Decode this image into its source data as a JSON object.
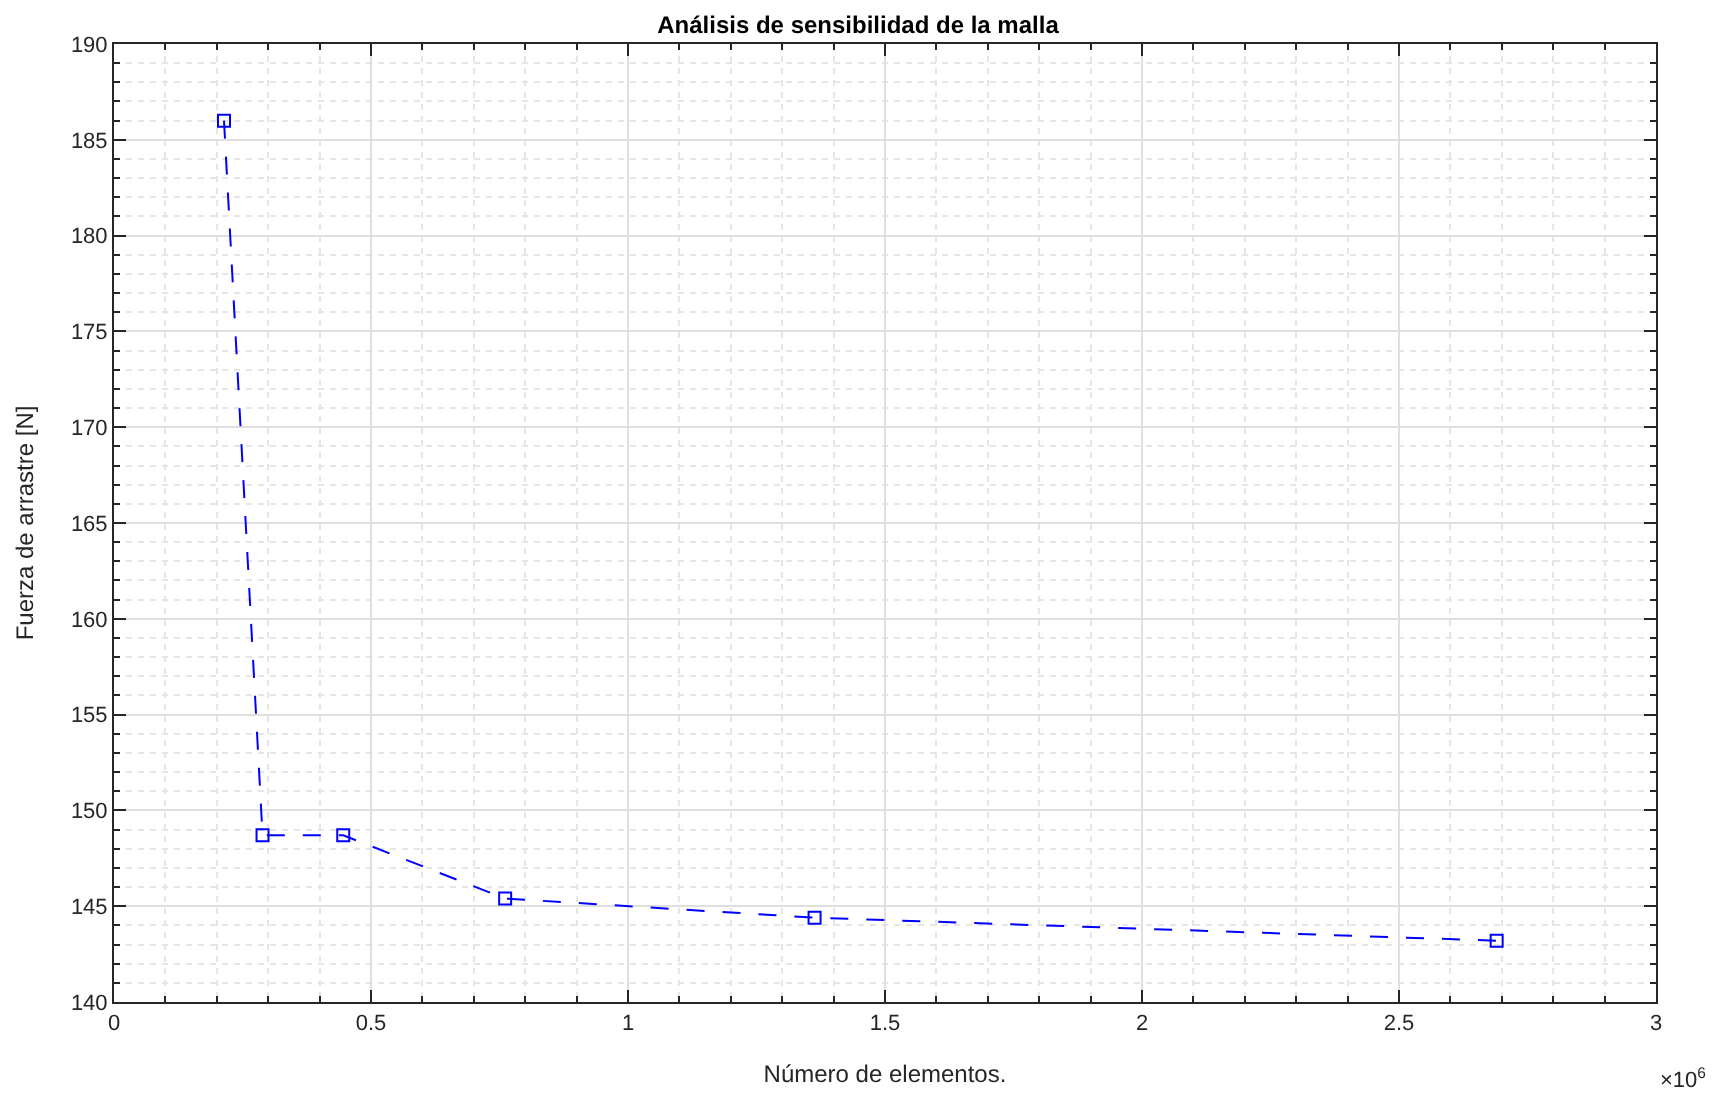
{
  "chart_data": {
    "type": "line",
    "title": "Análisis de sensibilidad de la malla",
    "xlabel": "Número de elementos.",
    "ylabel": "Fuerza de arrastre [N]",
    "x": [
      0.214,
      0.289,
      0.446,
      0.761,
      1.363,
      2.69
    ],
    "series": [
      {
        "color": "#0000ff",
        "values": [
          186.0,
          148.7,
          148.7,
          145.4,
          144.4,
          143.2
        ]
      }
    ],
    "xlim": [
      0,
      3
    ],
    "xticks": [
      0,
      0.5,
      1,
      1.5,
      2,
      2.5,
      3
    ],
    "ylim": [
      140,
      190
    ],
    "yticks": [
      140,
      145,
      150,
      155,
      160,
      165,
      170,
      175,
      180,
      185,
      190
    ],
    "grid": true,
    "legend": false,
    "marker": "square",
    "line_style": "dashed",
    "annotations": [
      "×10$^{6}$"
    ]
  }
}
